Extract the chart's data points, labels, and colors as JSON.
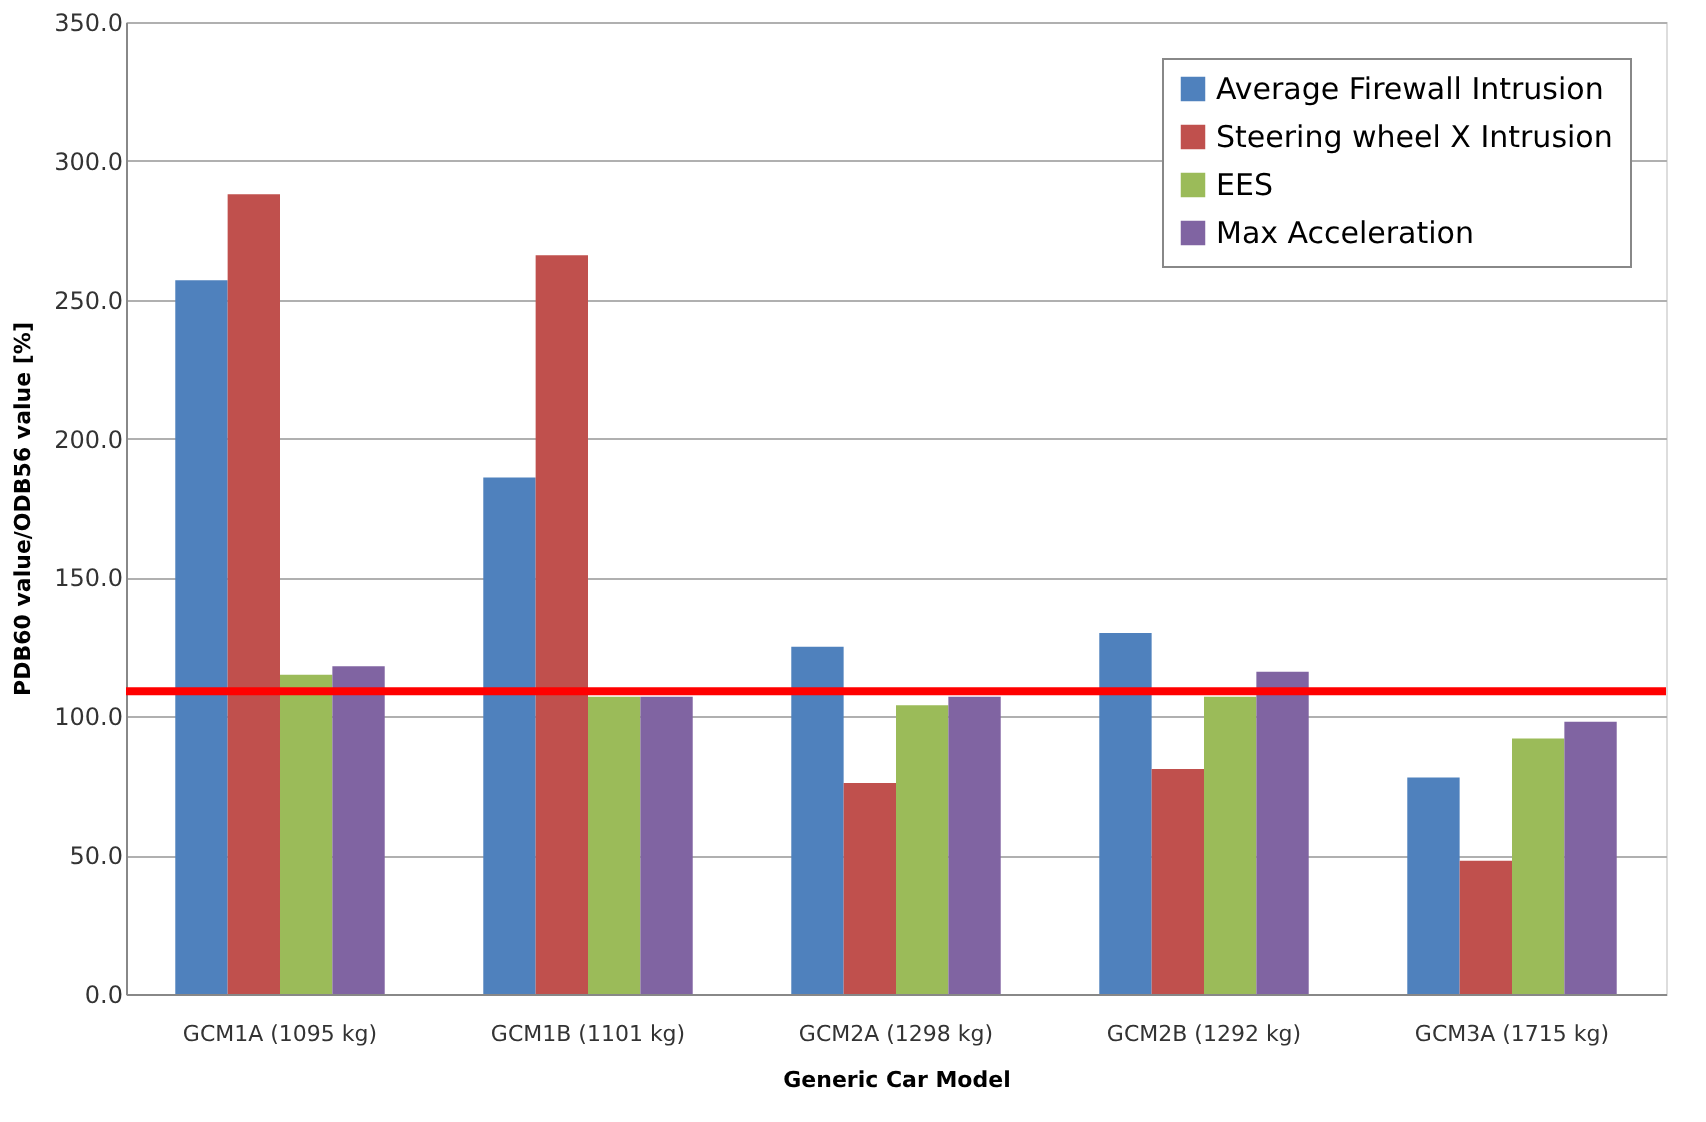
{
  "chart_data": {
    "type": "bar",
    "xlabel": "Generic Car Model",
    "ylabel": "PDB60 value/ODB56 value [%]",
    "categories": [
      "GCM1A (1095 kg)",
      "GCM1B (1101 kg)",
      "GCM2A (1298 kg)",
      "GCM2B (1292 kg)",
      "GCM3A (1715 kg)"
    ],
    "series": [
      {
        "name": "Average Firewall Intrusion",
        "color": "#4f81bd",
        "values": [
          257,
          186,
          125,
          130,
          78
        ]
      },
      {
        "name": "Steering wheel X Intrusion",
        "color": "#c0504d",
        "values": [
          288,
          266,
          76,
          81,
          48
        ]
      },
      {
        "name": "EES",
        "color": "#9bbb59",
        "values": [
          115,
          107,
          104,
          107,
          92
        ]
      },
      {
        "name": "Max Acceleration",
        "color": "#8064a2",
        "values": [
          118,
          107,
          107,
          116,
          98
        ]
      }
    ],
    "ylim": [
      0,
      350
    ],
    "yticks": [
      {
        "value": 0,
        "label": "0.0"
      },
      {
        "value": 50,
        "label": "50.0"
      },
      {
        "value": 100,
        "label": "100.0"
      },
      {
        "value": 150,
        "label": "150.0"
      },
      {
        "value": 200,
        "label": "200.0"
      },
      {
        "value": 250,
        "label": "250.0"
      },
      {
        "value": 300,
        "label": "300.0"
      },
      {
        "value": 350,
        "label": "350.0"
      }
    ],
    "ref_lines": [
      {
        "axis": "y",
        "value": 109,
        "color": "#ff0000"
      }
    ],
    "grid": "y",
    "legend": "top right"
  }
}
